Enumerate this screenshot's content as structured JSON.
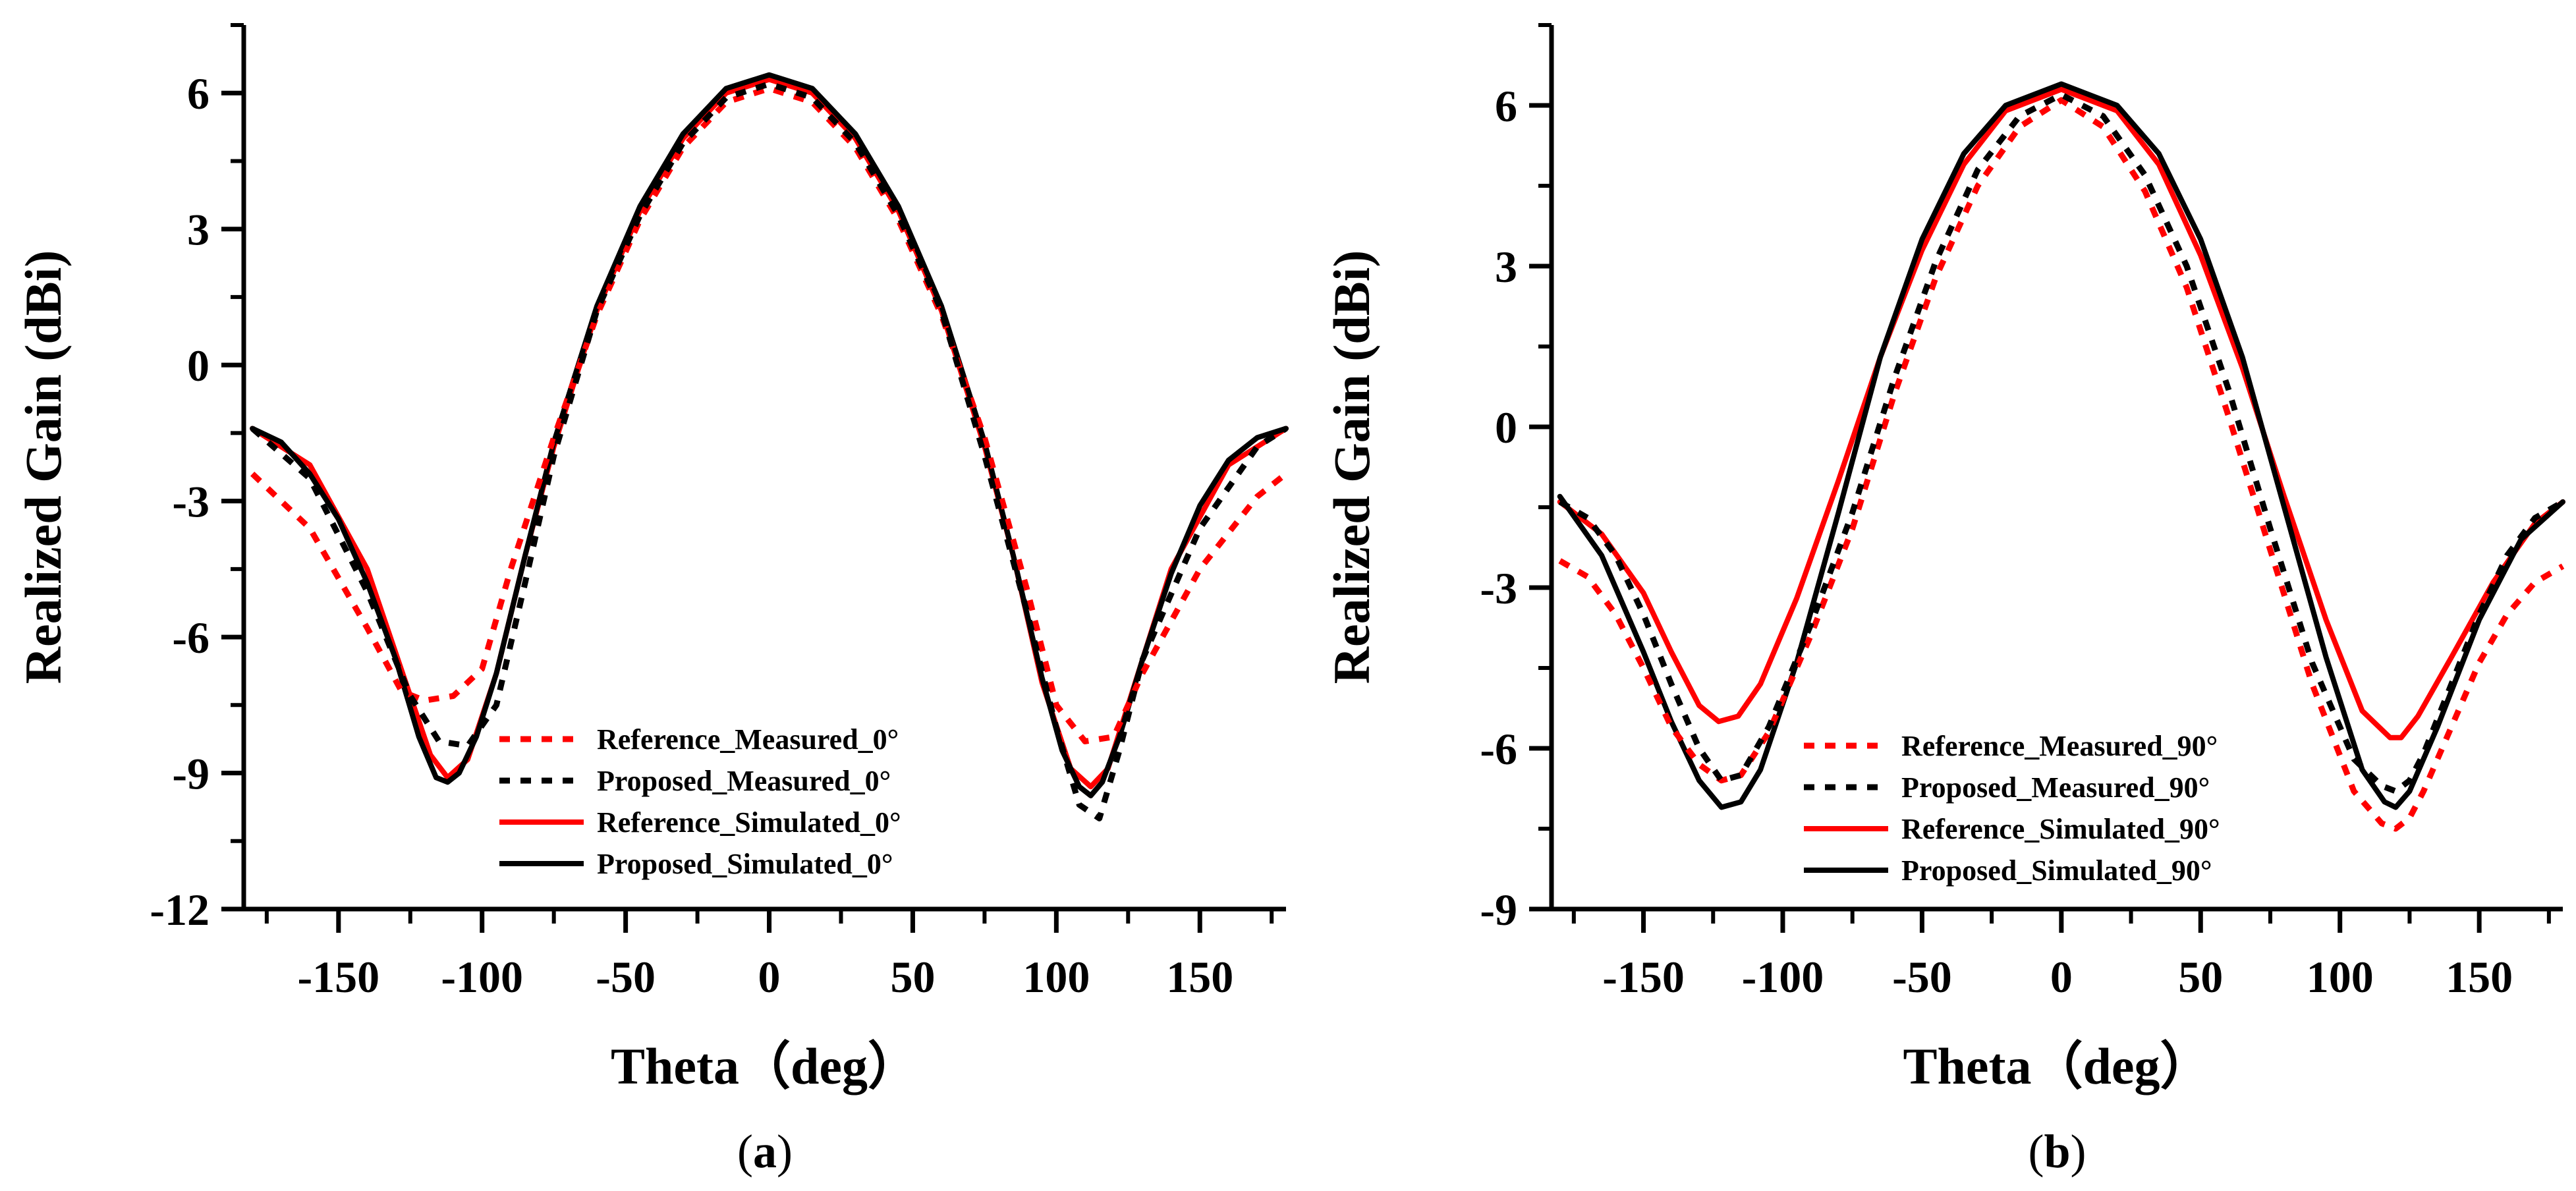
{
  "chart_data": [
    {
      "type": "line",
      "panel_label": "a",
      "xlabel": "Theta（deg）",
      "ylabel": "Realized Gain (dBi)",
      "xlim": [
        -183,
        180
      ],
      "ylim": [
        -12,
        7.5
      ],
      "x_ticks": [
        -150,
        -100,
        -50,
        0,
        50,
        100,
        150
      ],
      "x_tick_labels": [
        "-150",
        "-100",
        "-50",
        "0",
        "50",
        "100",
        "150"
      ],
      "y_ticks": [
        -12,
        -9,
        -6,
        -3,
        0,
        3,
        6
      ],
      "y_tick_labels": [
        "-12",
        "-9",
        "-6",
        "-3",
        "0",
        "3",
        "6"
      ],
      "legend_position": "bottom-right",
      "series": [
        {
          "name": "Reference_Measured_0°",
          "color": "#ff0000",
          "style": "dotted",
          "x": [
            -180,
            -160,
            -140,
            -128,
            -120,
            -110,
            -100,
            -90,
            -75,
            -60,
            -45,
            -30,
            -15,
            0,
            15,
            30,
            45,
            60,
            75,
            90,
            100,
            110,
            120,
            130,
            150,
            170,
            180
          ],
          "y": [
            -2.4,
            -3.6,
            -5.8,
            -7.2,
            -7.4,
            -7.3,
            -6.7,
            -4.5,
            -1.6,
            1.1,
            3.2,
            4.8,
            5.8,
            6.1,
            5.8,
            4.8,
            3.2,
            1.1,
            -1.6,
            -5.0,
            -7.5,
            -8.3,
            -8.2,
            -6.8,
            -4.5,
            -2.9,
            -2.4
          ]
        },
        {
          "name": "Proposed_Measured_0°",
          "color": "#000000",
          "style": "dotted",
          "x": [
            -180,
            -160,
            -140,
            -125,
            -115,
            -105,
            -95,
            -85,
            -75,
            -60,
            -45,
            -30,
            -15,
            0,
            15,
            30,
            45,
            60,
            75,
            90,
            100,
            108,
            115,
            122,
            130,
            150,
            170,
            180
          ],
          "y": [
            -1.4,
            -2.5,
            -5.0,
            -7.3,
            -8.3,
            -8.4,
            -7.5,
            -4.8,
            -2.0,
            1.2,
            3.3,
            4.9,
            5.9,
            6.2,
            5.9,
            4.9,
            3.3,
            1.2,
            -2.0,
            -5.5,
            -8.0,
            -9.7,
            -10.0,
            -8.5,
            -6.5,
            -3.6,
            -1.8,
            -1.4
          ]
        },
        {
          "name": "Reference_Simulated_0°",
          "color": "#ff0000",
          "style": "solid",
          "x": [
            -180,
            -160,
            -140,
            -125,
            -118,
            -112,
            -105,
            -95,
            -85,
            -75,
            -60,
            -45,
            -30,
            -15,
            0,
            15,
            30,
            45,
            60,
            75,
            85,
            95,
            105,
            112,
            118,
            125,
            140,
            160,
            180
          ],
          "y": [
            -1.4,
            -2.2,
            -4.5,
            -7.3,
            -8.6,
            -9.1,
            -8.7,
            -6.8,
            -4.2,
            -1.8,
            1.2,
            3.4,
            5.0,
            6.0,
            6.3,
            6.0,
            5.0,
            3.4,
            1.2,
            -1.8,
            -4.2,
            -7.0,
            -8.9,
            -9.3,
            -8.9,
            -7.5,
            -4.5,
            -2.2,
            -1.4
          ]
        },
        {
          "name": "Proposed_Simulated_0°",
          "color": "#000000",
          "style": "solid",
          "x": [
            -180,
            -170,
            -160,
            -150,
            -140,
            -130,
            -122,
            -116,
            -112,
            -108,
            -102,
            -95,
            -85,
            -75,
            -60,
            -45,
            -30,
            -15,
            0,
            15,
            30,
            45,
            60,
            75,
            85,
            95,
            102,
            108,
            112,
            116,
            122,
            130,
            140,
            150,
            160,
            170,
            180
          ],
          "y": [
            -1.4,
            -1.7,
            -2.4,
            -3.4,
            -4.8,
            -6.5,
            -8.2,
            -9.1,
            -9.2,
            -9.0,
            -8.2,
            -6.8,
            -4.2,
            -1.7,
            1.3,
            3.5,
            5.1,
            6.1,
            6.4,
            6.1,
            5.1,
            3.5,
            1.3,
            -1.7,
            -4.2,
            -6.9,
            -8.5,
            -9.3,
            -9.5,
            -9.2,
            -8.2,
            -6.5,
            -4.6,
            -3.1,
            -2.1,
            -1.6,
            -1.4
          ]
        }
      ]
    },
    {
      "type": "line",
      "panel_label": "b",
      "xlabel": "Theta（deg）",
      "ylabel": "Realized Gain (dBi)",
      "xlim": [
        -183,
        180
      ],
      "ylim": [
        -9,
        7.5
      ],
      "x_ticks": [
        -150,
        -100,
        -50,
        0,
        50,
        100,
        150
      ],
      "x_tick_labels": [
        "-150",
        "-100",
        "-50",
        "0",
        "50",
        "100",
        "150"
      ],
      "y_ticks": [
        -9,
        -6,
        -3,
        0,
        3,
        6
      ],
      "y_tick_labels": [
        "-9",
        "-6",
        "-3",
        "0",
        "3",
        "6"
      ],
      "legend_position": "bottom-right",
      "series": [
        {
          "name": "Reference_Measured_90°",
          "color": "#ff0000",
          "style": "dotted",
          "x": [
            -180,
            -170,
            -160,
            -150,
            -140,
            -130,
            -122,
            -115,
            -105,
            -90,
            -75,
            -60,
            -45,
            -30,
            -15,
            0,
            15,
            30,
            45,
            60,
            75,
            90,
            105,
            115,
            120,
            125,
            130,
            140,
            150,
            160,
            170,
            180
          ],
          "y": [
            -2.5,
            -2.8,
            -3.5,
            -4.5,
            -5.6,
            -6.3,
            -6.6,
            -6.5,
            -5.7,
            -3.9,
            -1.9,
            0.6,
            2.8,
            4.5,
            5.6,
            6.1,
            5.6,
            4.4,
            2.6,
            0.2,
            -2.3,
            -4.8,
            -6.8,
            -7.4,
            -7.5,
            -7.3,
            -6.8,
            -5.6,
            -4.4,
            -3.5,
            -2.9,
            -2.6
          ]
        },
        {
          "name": "Proposed_Measured_90°",
          "color": "#000000",
          "style": "dotted",
          "x": [
            -180,
            -170,
            -160,
            -150,
            -140,
            -130,
            -122,
            -115,
            -105,
            -90,
            -75,
            -60,
            -45,
            -30,
            -15,
            0,
            15,
            30,
            45,
            60,
            75,
            90,
            105,
            115,
            120,
            125,
            130,
            140,
            150,
            160,
            170,
            180
          ],
          "y": [
            -1.4,
            -1.7,
            -2.4,
            -3.5,
            -4.8,
            -6.0,
            -6.6,
            -6.5,
            -5.6,
            -3.7,
            -1.6,
            0.9,
            3.1,
            4.8,
            5.8,
            6.2,
            5.8,
            4.7,
            3.0,
            0.7,
            -1.9,
            -4.4,
            -6.2,
            -6.7,
            -6.8,
            -6.6,
            -6.1,
            -4.8,
            -3.5,
            -2.4,
            -1.7,
            -1.4
          ]
        },
        {
          "name": "Reference_Simulated_90°",
          "color": "#ff0000",
          "style": "solid",
          "x": [
            -180,
            -165,
            -150,
            -140,
            -130,
            -123,
            -116,
            -108,
            -95,
            -80,
            -65,
            -50,
            -35,
            -20,
            0,
            20,
            35,
            50,
            65,
            80,
            95,
            108,
            118,
            122,
            128,
            140,
            155,
            170,
            180
          ],
          "y": [
            -1.4,
            -2.0,
            -3.1,
            -4.2,
            -5.2,
            -5.5,
            -5.4,
            -4.8,
            -3.2,
            -1.0,
            1.3,
            3.3,
            4.9,
            5.9,
            6.3,
            5.9,
            4.9,
            3.2,
            1.1,
            -1.3,
            -3.6,
            -5.3,
            -5.8,
            -5.8,
            -5.4,
            -4.3,
            -2.9,
            -1.8,
            -1.4
          ]
        },
        {
          "name": "Proposed_Simulated_90°",
          "color": "#000000",
          "style": "solid",
          "x": [
            -180,
            -165,
            -150,
            -140,
            -130,
            -122,
            -115,
            -108,
            -95,
            -80,
            -65,
            -50,
            -35,
            -20,
            0,
            20,
            35,
            50,
            65,
            80,
            95,
            108,
            116,
            120,
            125,
            135,
            150,
            165,
            180
          ],
          "y": [
            -1.3,
            -2.4,
            -4.2,
            -5.5,
            -6.6,
            -7.1,
            -7.0,
            -6.4,
            -4.4,
            -1.6,
            1.3,
            3.5,
            5.1,
            6.0,
            6.4,
            6.0,
            5.1,
            3.5,
            1.3,
            -1.5,
            -4.3,
            -6.4,
            -7.0,
            -7.1,
            -6.8,
            -5.6,
            -3.6,
            -2.1,
            -1.4
          ]
        }
      ]
    }
  ]
}
